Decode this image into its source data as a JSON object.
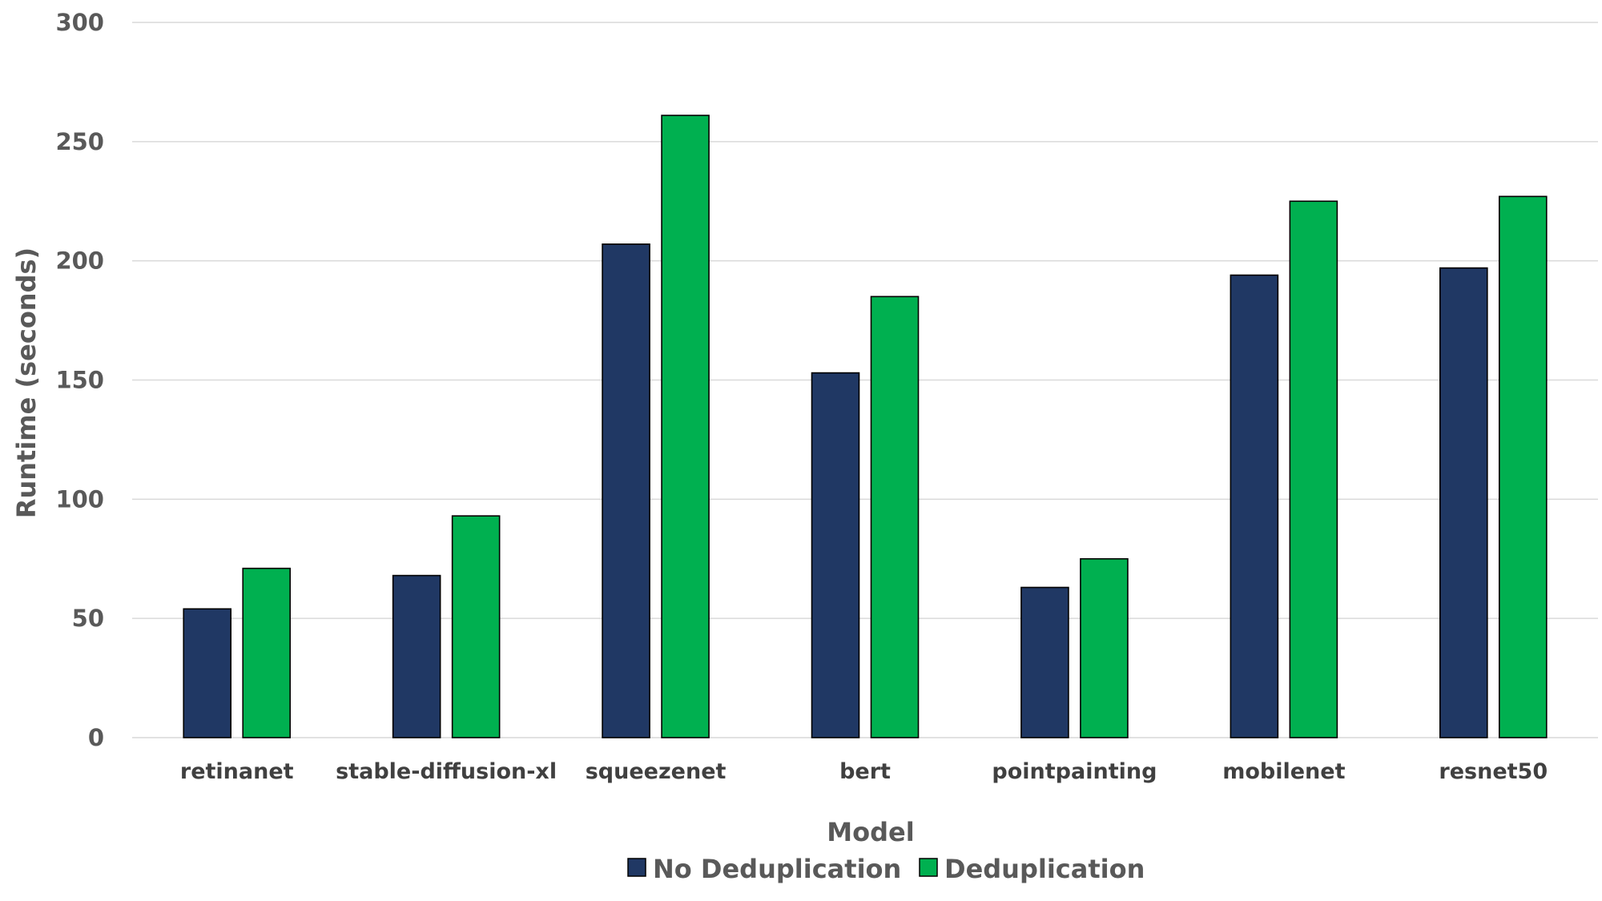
{
  "chart_data": {
    "type": "bar",
    "categories": [
      "retinanet",
      "stable-diffusion-xl",
      "squeezenet",
      "bert",
      "pointpainting",
      "mobilenet",
      "resnet50"
    ],
    "series": [
      {
        "name": "No Deduplication",
        "color": "#203864",
        "values": [
          54,
          68,
          207,
          153,
          63,
          194,
          197
        ]
      },
      {
        "name": "Deduplication",
        "color": "#00b050",
        "values": [
          71,
          93,
          261,
          185,
          75,
          225,
          227
        ]
      }
    ],
    "xlabel": "Model",
    "ylabel": "Runtime (seconds)",
    "ylim": [
      0,
      300
    ],
    "yticks": [
      0,
      50,
      100,
      150,
      200,
      250,
      300
    ],
    "grid": true,
    "legend_position": "bottom"
  }
}
